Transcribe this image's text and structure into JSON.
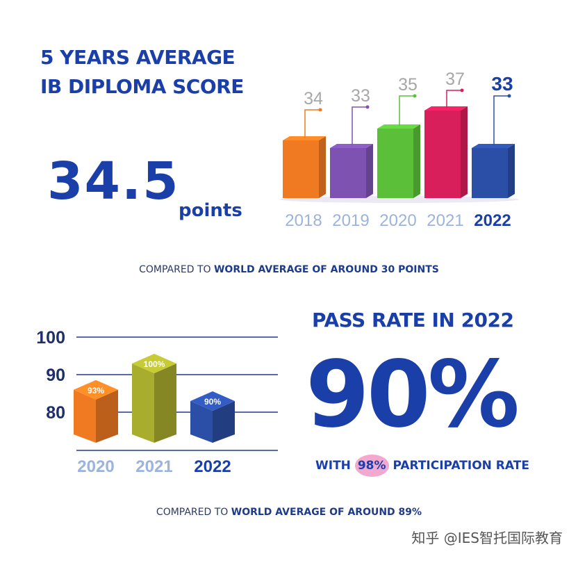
{
  "heading": {
    "line1": "5 YEARS AVERAGE",
    "line2": "IB DIPLOMA SCORE"
  },
  "average_score": {
    "value": "34.5",
    "unit": "points"
  },
  "comparison1": {
    "prefix": "COMPARED TO ",
    "bold": "WORLD AVERAGE OF AROUND",
    "suffix": " 30 POINTS"
  },
  "pass_rate": {
    "title": "PASS RATE IN 2022",
    "value": "90%",
    "participation_prefix": "WITH ",
    "participation_value": "98%",
    "participation_suffix": " PARTICIPATION RATE"
  },
  "comparison2": {
    "prefix": "COMPARED TO ",
    "bold": "WORLD AVERAGE OF AROUND 89%"
  },
  "watermark": "知乎 @IES智托国际教育",
  "colors": {
    "navy": "#1a3fa8",
    "orange": "#f07a22",
    "purple": "#7d52b0",
    "green": "#5cbf3a",
    "crimson": "#d81e5b",
    "blue": "#2b4fa6",
    "olive": "#a9ad2e",
    "year_muted": "#9bb3dd"
  },
  "chart_data": [
    {
      "type": "bar",
      "categories": [
        "2018",
        "2019",
        "2020",
        "2021",
        "2022"
      ],
      "values": [
        34,
        33,
        35,
        37,
        33
      ],
      "labels": [
        "34",
        "33",
        "35",
        "37",
        "33"
      ],
      "highlight": "2022"
    },
    {
      "type": "bar",
      "categories": [
        "2020",
        "2021",
        "2022"
      ],
      "values": [
        93,
        100,
        90
      ],
      "labels": [
        "93%",
        "100%",
        "90%"
      ],
      "yticks": [
        "100",
        "90",
        "80"
      ],
      "ylim": [
        80,
        100
      ],
      "grid": true,
      "highlight": "2022"
    }
  ]
}
